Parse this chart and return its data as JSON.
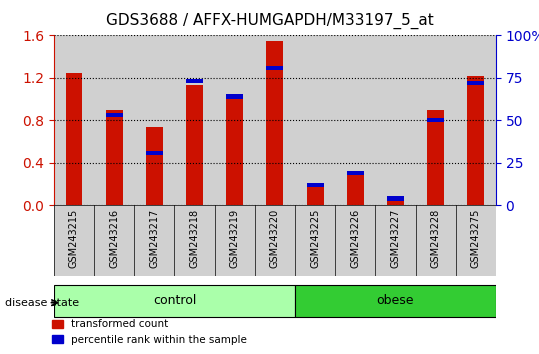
{
  "title": "GDS3688 / AFFX-HUMGAPDH/M33197_5_at",
  "categories": [
    "GSM243215",
    "GSM243216",
    "GSM243217",
    "GSM243218",
    "GSM243219",
    "GSM243220",
    "GSM243225",
    "GSM243226",
    "GSM243227",
    "GSM243228",
    "GSM243275"
  ],
  "red_values": [
    1.25,
    0.9,
    0.74,
    1.13,
    1.02,
    1.55,
    0.2,
    0.32,
    0.05,
    0.9,
    1.22
  ],
  "blue_values": [
    0.0,
    0.855,
    0.5,
    1.17,
    1.02,
    1.3,
    0.195,
    0.305,
    0.065,
    0.8,
    1.15
  ],
  "blue_pct": [
    0,
    53,
    31,
    73,
    64,
    81,
    12,
    19,
    4,
    50,
    72
  ],
  "control_indices": [
    0,
    1,
    2,
    3,
    4,
    5
  ],
  "obese_indices": [
    6,
    7,
    8,
    9,
    10
  ],
  "ylim": [
    0,
    1.6
  ],
  "yticks": [
    0,
    0.4,
    0.8,
    1.2,
    1.6
  ],
  "right_yticks": [
    0,
    25,
    50,
    75,
    100
  ],
  "red_color": "#cc1100",
  "blue_color": "#0000cc",
  "control_color": "#aaffaa",
  "obese_color": "#33cc33",
  "bar_bg": "#d0d0d0",
  "bar_width": 0.6,
  "title_fontsize": 11,
  "axis_label_color_red": "#cc1100",
  "axis_label_color_blue": "#0000cc"
}
